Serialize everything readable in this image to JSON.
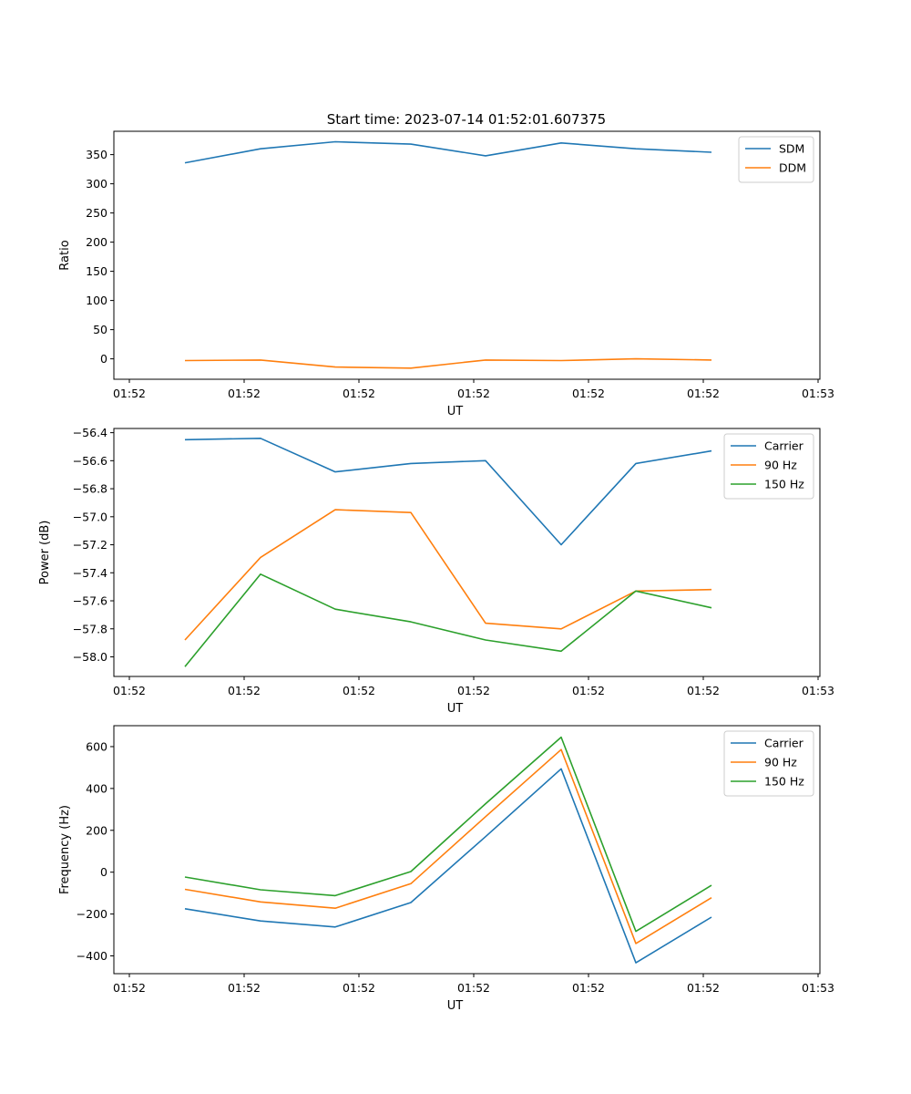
{
  "figure_title": "Start time: 2023-07-14 01:52:01.607375",
  "chart_data": [
    {
      "type": "line",
      "title": "Start time: 2023-07-14 01:52:01.607375",
      "xlabel": "UT",
      "ylabel": "Ratio",
      "xticks": [
        "01:52",
        "01:52",
        "01:52",
        "01:52",
        "01:52",
        "01:52",
        "01:52",
        "01:53"
      ],
      "yticks": [
        0,
        50,
        100,
        150,
        200,
        250,
        300,
        350
      ],
      "ylim": [
        -35,
        390
      ],
      "legend_position": "top-right",
      "series": [
        {
          "name": "SDM",
          "color": "#1f77b4",
          "values": [
            336,
            360,
            372,
            368,
            348,
            370,
            360,
            354
          ]
        },
        {
          "name": "DDM",
          "color": "#ff7f0e",
          "values": [
            -3,
            -2,
            -14,
            -16,
            -2,
            -3,
            0,
            -2
          ]
        }
      ]
    },
    {
      "type": "line",
      "xlabel": "UT",
      "ylabel": "Power (dB)",
      "xticks": [
        "01:52",
        "01:52",
        "01:52",
        "01:52",
        "01:52",
        "01:52",
        "01:52",
        "01:53"
      ],
      "yticks": [
        -58.0,
        -57.8,
        -57.6,
        -57.4,
        -57.2,
        -57.0,
        -56.8,
        -56.6,
        -56.4
      ],
      "ylim": [
        -58.14,
        -56.37
      ],
      "legend_position": "top-right",
      "series": [
        {
          "name": "Carrier",
          "color": "#1f77b4",
          "values": [
            -56.45,
            -56.44,
            -56.68,
            -56.62,
            -56.6,
            -57.2,
            -56.62,
            -56.53
          ]
        },
        {
          "name": "90 Hz",
          "color": "#ff7f0e",
          "values": [
            -57.88,
            -57.29,
            -56.95,
            -56.97,
            -57.76,
            -57.8,
            -57.53,
            -57.52
          ]
        },
        {
          "name": "150 Hz",
          "color": "#2ca02c",
          "values": [
            -58.07,
            -57.41,
            -57.66,
            -57.75,
            -57.88,
            -57.96,
            -57.53,
            -57.65
          ]
        }
      ]
    },
    {
      "type": "line",
      "xlabel": "UT",
      "ylabel": "Frequency (Hz)",
      "xticks": [
        "01:52",
        "01:52",
        "01:52",
        "01:52",
        "01:52",
        "01:52",
        "01:52",
        "01:53"
      ],
      "yticks": [
        -400,
        -200,
        0,
        200,
        400,
        600
      ],
      "ylim": [
        -485,
        700
      ],
      "legend_position": "top-right",
      "series": [
        {
          "name": "Carrier",
          "color": "#1f77b4",
          "values": [
            -175,
            -233,
            -262,
            -145,
            170,
            494,
            -433,
            -215
          ]
        },
        {
          "name": "90 Hz",
          "color": "#ff7f0e",
          "values": [
            -82,
            -142,
            -172,
            -55,
            265,
            586,
            -341,
            -122
          ]
        },
        {
          "name": "150 Hz",
          "color": "#2ca02c",
          "values": [
            -23,
            -84,
            -112,
            3,
            327,
            645,
            -283,
            -63
          ]
        }
      ]
    }
  ]
}
